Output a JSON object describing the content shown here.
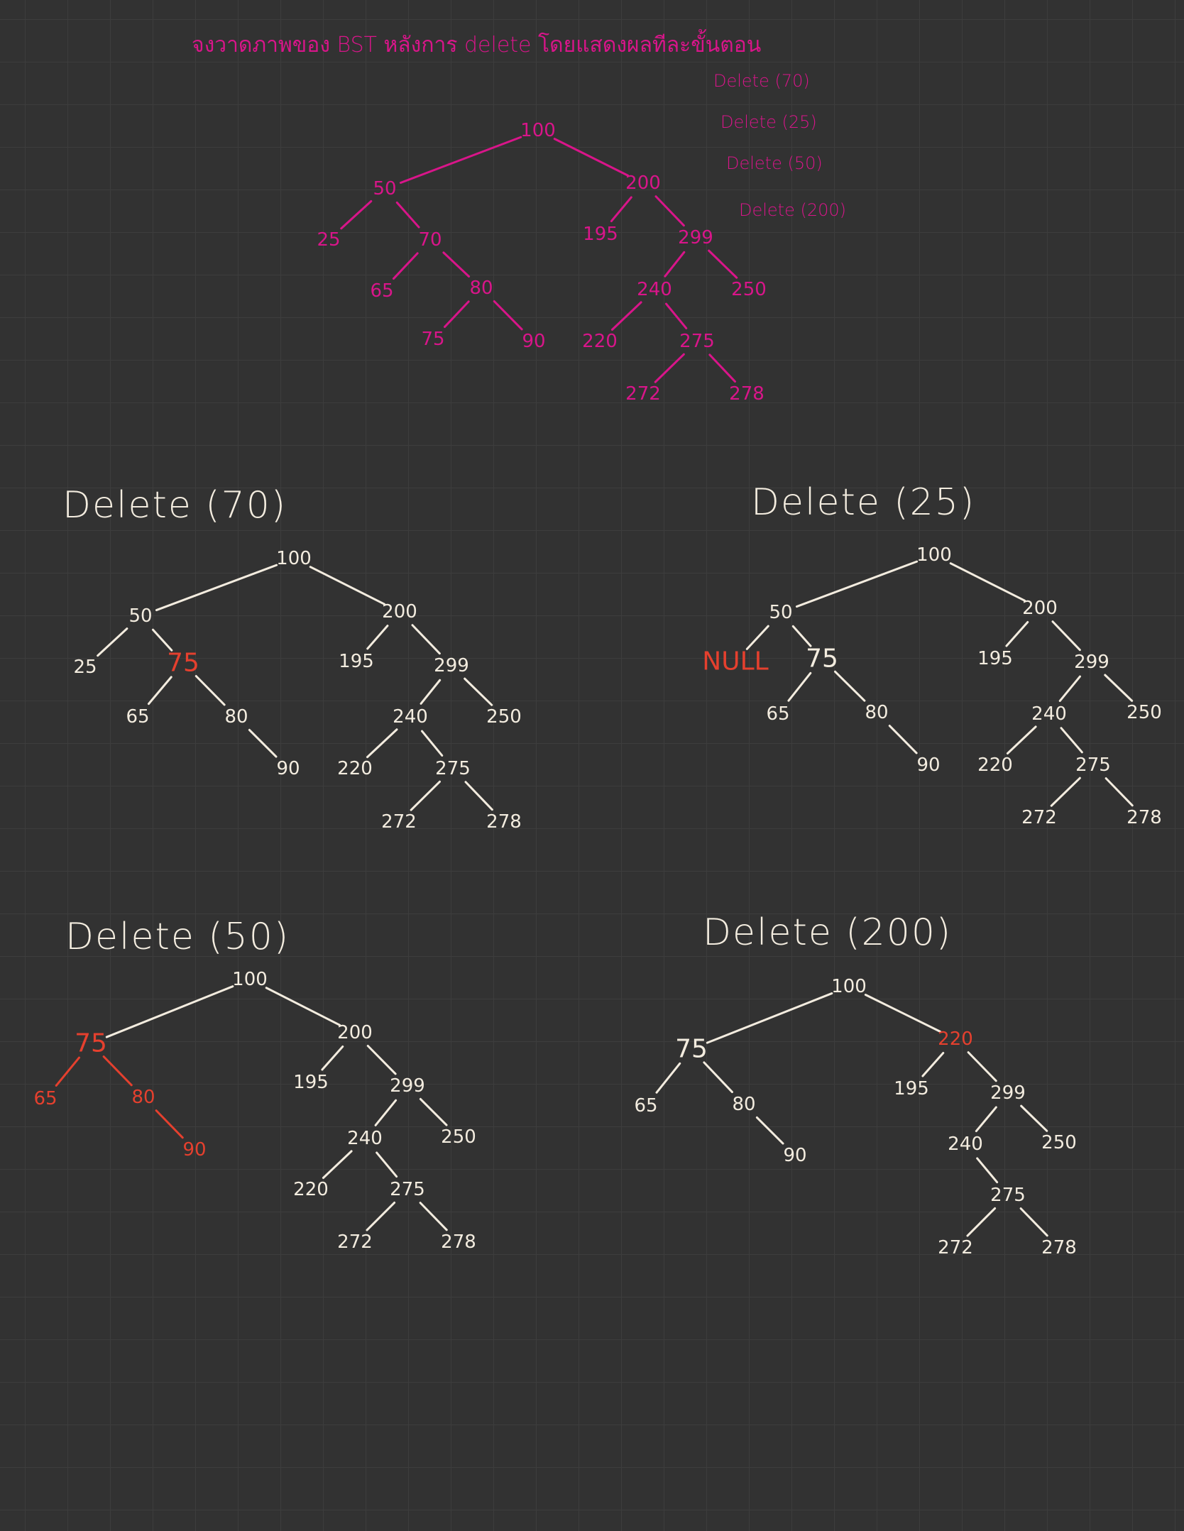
{
  "top": {
    "title": "จงวาดภาพของ BST หลังการ delete โดยแสดงผลทีละขั้นตอน",
    "operations": [
      "Delete (70)",
      "Delete (25)",
      "Delete (50)",
      "Delete (200)"
    ]
  },
  "headings": {
    "d70": "Delete (70)",
    "d25": "Delete (25)",
    "d50": "Delete (50)",
    "d200": "Delete (200)"
  },
  "colors": {
    "original": "#d9158a",
    "chalk": "#f3ecdf",
    "highlight": "#e5402e",
    "background": "#323232"
  },
  "trees": {
    "original": {
      "nodes": [
        {
          "id": "n100",
          "label": "100"
        },
        {
          "id": "n50",
          "label": "50"
        },
        {
          "id": "n200",
          "label": "200"
        },
        {
          "id": "n25",
          "label": "25"
        },
        {
          "id": "n70",
          "label": "70"
        },
        {
          "id": "n195",
          "label": "195"
        },
        {
          "id": "n299",
          "label": "299"
        },
        {
          "id": "n65",
          "label": "65"
        },
        {
          "id": "n80",
          "label": "80"
        },
        {
          "id": "n240",
          "label": "240"
        },
        {
          "id": "n250",
          "label": "250"
        },
        {
          "id": "n75",
          "label": "75"
        },
        {
          "id": "n90",
          "label": "90"
        },
        {
          "id": "n220",
          "label": "220"
        },
        {
          "id": "n275",
          "label": "275"
        },
        {
          "id": "n272",
          "label": "272"
        },
        {
          "id": "n278",
          "label": "278"
        }
      ],
      "edges": [
        [
          "n100",
          "n50"
        ],
        [
          "n100",
          "n200"
        ],
        [
          "n50",
          "n25"
        ],
        [
          "n50",
          "n70"
        ],
        [
          "n200",
          "n195"
        ],
        [
          "n200",
          "n299"
        ],
        [
          "n70",
          "n65"
        ],
        [
          "n70",
          "n80"
        ],
        [
          "n299",
          "n240"
        ],
        [
          "n299",
          "n250"
        ],
        [
          "n80",
          "n75"
        ],
        [
          "n80",
          "n90"
        ],
        [
          "n240",
          "n220"
        ],
        [
          "n240",
          "n275"
        ],
        [
          "n275",
          "n272"
        ],
        [
          "n275",
          "n278"
        ]
      ]
    },
    "after_delete_70": {
      "nodes": [
        {
          "id": "n100",
          "label": "100"
        },
        {
          "id": "n50",
          "label": "50"
        },
        {
          "id": "n200",
          "label": "200"
        },
        {
          "id": "n25",
          "label": "25"
        },
        {
          "id": "n75",
          "label": "75",
          "highlight": true
        },
        {
          "id": "n195",
          "label": "195"
        },
        {
          "id": "n299",
          "label": "299"
        },
        {
          "id": "n65",
          "label": "65"
        },
        {
          "id": "n80",
          "label": "80"
        },
        {
          "id": "n240",
          "label": "240"
        },
        {
          "id": "n250",
          "label": "250"
        },
        {
          "id": "n90",
          "label": "90"
        },
        {
          "id": "n220",
          "label": "220"
        },
        {
          "id": "n275",
          "label": "275"
        },
        {
          "id": "n272",
          "label": "272"
        },
        {
          "id": "n278",
          "label": "278"
        }
      ],
      "edges": [
        [
          "n100",
          "n50"
        ],
        [
          "n100",
          "n200"
        ],
        [
          "n50",
          "n25"
        ],
        [
          "n50",
          "n75"
        ],
        [
          "n200",
          "n195"
        ],
        [
          "n200",
          "n299"
        ],
        [
          "n75",
          "n65"
        ],
        [
          "n75",
          "n80"
        ],
        [
          "n299",
          "n240"
        ],
        [
          "n299",
          "n250"
        ],
        [
          "n80",
          "n90"
        ],
        [
          "n240",
          "n220"
        ],
        [
          "n240",
          "n275"
        ],
        [
          "n275",
          "n272"
        ],
        [
          "n275",
          "n278"
        ]
      ]
    },
    "after_delete_25": {
      "nodes": [
        {
          "id": "n100",
          "label": "100"
        },
        {
          "id": "n50",
          "label": "50"
        },
        {
          "id": "n200",
          "label": "200"
        },
        {
          "id": "nnull",
          "label": "NULL",
          "highlight": true
        },
        {
          "id": "n75",
          "label": "75"
        },
        {
          "id": "n195",
          "label": "195"
        },
        {
          "id": "n299",
          "label": "299"
        },
        {
          "id": "n65",
          "label": "65"
        },
        {
          "id": "n80",
          "label": "80"
        },
        {
          "id": "n240",
          "label": "240"
        },
        {
          "id": "n250",
          "label": "250"
        },
        {
          "id": "n90",
          "label": "90"
        },
        {
          "id": "n220",
          "label": "220"
        },
        {
          "id": "n275",
          "label": "275"
        },
        {
          "id": "n272",
          "label": "272"
        },
        {
          "id": "n278",
          "label": "278"
        }
      ],
      "edges": [
        [
          "n100",
          "n50"
        ],
        [
          "n100",
          "n200"
        ],
        [
          "n50",
          "nnull"
        ],
        [
          "n50",
          "n75"
        ],
        [
          "n200",
          "n195"
        ],
        [
          "n200",
          "n299"
        ],
        [
          "n75",
          "n65"
        ],
        [
          "n75",
          "n80"
        ],
        [
          "n299",
          "n240"
        ],
        [
          "n299",
          "n250"
        ],
        [
          "n80",
          "n90"
        ],
        [
          "n240",
          "n220"
        ],
        [
          "n240",
          "n275"
        ],
        [
          "n275",
          "n272"
        ],
        [
          "n275",
          "n278"
        ]
      ]
    },
    "after_delete_50": {
      "nodes": [
        {
          "id": "n100",
          "label": "100"
        },
        {
          "id": "n75",
          "label": "75",
          "highlight": true
        },
        {
          "id": "n200",
          "label": "200"
        },
        {
          "id": "n65",
          "label": "65",
          "highlight": true
        },
        {
          "id": "n80",
          "label": "80",
          "highlight": true
        },
        {
          "id": "n195",
          "label": "195"
        },
        {
          "id": "n299",
          "label": "299"
        },
        {
          "id": "n90",
          "label": "90",
          "highlight": true
        },
        {
          "id": "n240",
          "label": "240"
        },
        {
          "id": "n250",
          "label": "250"
        },
        {
          "id": "n220",
          "label": "220"
        },
        {
          "id": "n275",
          "label": "275"
        },
        {
          "id": "n272",
          "label": "272"
        },
        {
          "id": "n278",
          "label": "278"
        }
      ],
      "edges": [
        [
          "n100",
          "n75"
        ],
        [
          "n100",
          "n200"
        ],
        [
          "n75",
          "n65",
          "hl"
        ],
        [
          "n75",
          "n80",
          "hl"
        ],
        [
          "n80",
          "n90",
          "hl"
        ],
        [
          "n200",
          "n195"
        ],
        [
          "n200",
          "n299"
        ],
        [
          "n299",
          "n240"
        ],
        [
          "n299",
          "n250"
        ],
        [
          "n240",
          "n220"
        ],
        [
          "n240",
          "n275"
        ],
        [
          "n275",
          "n272"
        ],
        [
          "n275",
          "n278"
        ]
      ]
    },
    "after_delete_200": {
      "nodes": [
        {
          "id": "n100",
          "label": "100"
        },
        {
          "id": "n75",
          "label": "75"
        },
        {
          "id": "n220",
          "label": "220",
          "highlight": true
        },
        {
          "id": "n65",
          "label": "65"
        },
        {
          "id": "n80",
          "label": "80"
        },
        {
          "id": "n195",
          "label": "195"
        },
        {
          "id": "n299",
          "label": "299"
        },
        {
          "id": "n90",
          "label": "90"
        },
        {
          "id": "n240",
          "label": "240"
        },
        {
          "id": "n250",
          "label": "250"
        },
        {
          "id": "n275",
          "label": "275"
        },
        {
          "id": "n272",
          "label": "272"
        },
        {
          "id": "n278",
          "label": "278"
        }
      ],
      "edges": [
        [
          "n100",
          "n75"
        ],
        [
          "n100",
          "n220"
        ],
        [
          "n75",
          "n65"
        ],
        [
          "n75",
          "n80"
        ],
        [
          "n80",
          "n90"
        ],
        [
          "n220",
          "n195"
        ],
        [
          "n220",
          "n299"
        ],
        [
          "n299",
          "n240"
        ],
        [
          "n299",
          "n250"
        ],
        [
          "n240",
          "n275"
        ],
        [
          "n275",
          "n272"
        ],
        [
          "n275",
          "n278"
        ]
      ]
    }
  }
}
